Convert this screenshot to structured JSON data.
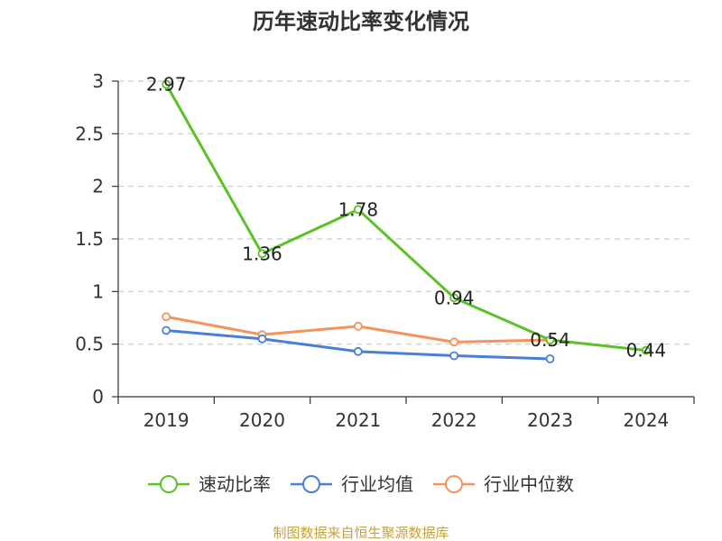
{
  "chart_data": {
    "type": "line",
    "title": "历年速动比率变化情况",
    "categories": [
      "2019",
      "2020",
      "2021",
      "2022",
      "2023",
      "2024"
    ],
    "ylim": [
      0,
      3
    ],
    "yticks": [
      0,
      0.5,
      1,
      1.5,
      2,
      2.5,
      3
    ],
    "ytick_labels": [
      "0",
      "0.5",
      "1",
      "1.5",
      "2",
      "2.5",
      "3"
    ],
    "grid": true,
    "legend_position": "bottom",
    "series": [
      {
        "name": "速动比率",
        "color": "#5bc225",
        "values": [
          2.97,
          1.36,
          1.78,
          0.94,
          0.54,
          0.44
        ],
        "labels": [
          "2.97",
          "1.36",
          "1.78",
          "0.94",
          "0.54",
          "0.44"
        ]
      },
      {
        "name": "行业均值",
        "color": "#4a7fd6",
        "values": [
          0.63,
          0.55,
          0.43,
          0.39,
          0.36,
          null
        ],
        "labels": null
      },
      {
        "name": "行业中位数",
        "color": "#f5935c",
        "values": [
          0.76,
          0.59,
          0.67,
          0.52,
          0.54,
          null
        ],
        "labels": null
      }
    ]
  },
  "source": "制图数据来自恒生聚源数据库"
}
